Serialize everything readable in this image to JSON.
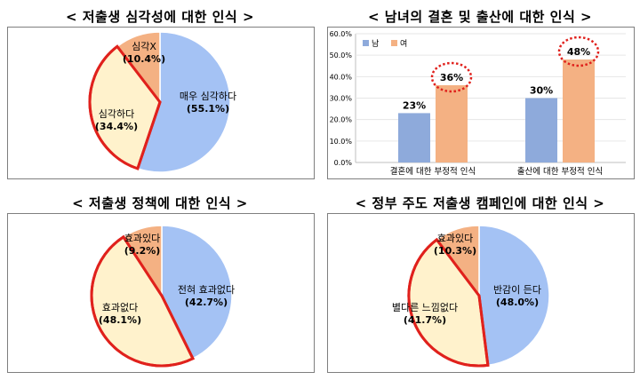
{
  "chart_data": [
    {
      "type": "pie",
      "title": "< 저출생 심각성에 대한 인식 >",
      "slices": [
        {
          "label": "매우 심각하다",
          "value": 55.1,
          "display": "(55.1%)",
          "color": "#a4c2f4"
        },
        {
          "label": "심각하다",
          "value": 34.4,
          "display": "(34.4%)",
          "color": "#fff2cc"
        },
        {
          "label": "심각X",
          "value": 10.4,
          "display": "(10.4%)",
          "color": "#f4b183"
        }
      ],
      "highlight_color": "#e0211c"
    },
    {
      "type": "bar",
      "title": "< 남녀의 결혼 및 출산에 대한 인식 >",
      "categories": [
        "결혼에 대한 부정적 인식",
        "출산에 대한 부정적 인식"
      ],
      "series": [
        {
          "name": "남",
          "values": [
            23,
            30
          ],
          "labels": [
            "23%",
            "30%"
          ],
          "color": "#8eaadb"
        },
        {
          "name": "여",
          "values": [
            36,
            48
          ],
          "labels": [
            "36%",
            "48%"
          ],
          "color": "#f4b183"
        }
      ],
      "ylim": [
        0,
        60
      ],
      "yticks": [
        "0.0%",
        "10.0%",
        "20.0%",
        "30.0%",
        "40.0%",
        "50.0%",
        "60.0%"
      ],
      "legend": "top-left",
      "circled_series": "여",
      "circle_color": "#e0211c"
    },
    {
      "type": "pie",
      "title": "< 저출생 정책에 대한 인식 >",
      "slices": [
        {
          "label": "전혀 효과없다",
          "value": 42.7,
          "display": "(42.7%)",
          "color": "#a4c2f4"
        },
        {
          "label": "효과없다",
          "value": 48.1,
          "display": "(48.1%)",
          "color": "#fff2cc"
        },
        {
          "label": "효과있다",
          "value": 9.2,
          "display": "(9.2%)",
          "color": "#f4b183"
        }
      ],
      "highlight_color": "#e0211c"
    },
    {
      "type": "pie",
      "title": "< 정부 주도 저출생 캠페인에 대한 인식 >",
      "slices": [
        {
          "label": "반감이 든다",
          "value": 48.0,
          "display": "(48.0%)",
          "color": "#a4c2f4"
        },
        {
          "label": "별다른 느낌없다",
          "value": 41.7,
          "display": "(41.7%)",
          "color": "#fff2cc"
        },
        {
          "label": "효과있다",
          "value": 10.3,
          "display": "(10.3%)",
          "color": "#f4b183"
        }
      ],
      "highlight_color": "#e0211c"
    }
  ]
}
